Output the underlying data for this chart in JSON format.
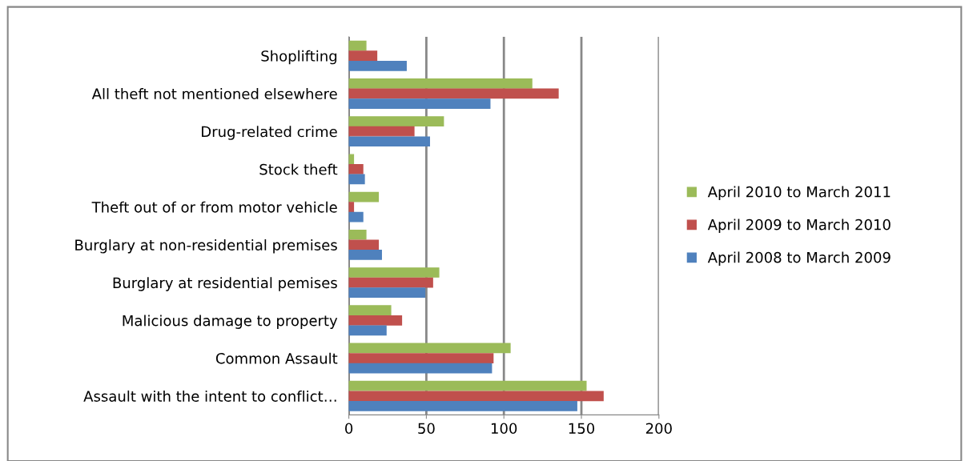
{
  "chart_data": {
    "type": "bar",
    "orientation": "horizontal",
    "categories": [
      "Shoplifting",
      "All theft not mentioned elsewhere",
      "Drug-related crime",
      "Stock theft",
      "Theft out of or from motor vehicle",
      "Burglary at non-residential premises",
      "Burglary at residential pemises",
      "Malicious damage to property",
      "Common Assault",
      "Assault with the intent to conflict…"
    ],
    "series": [
      {
        "name": "April 2010 to March 2011",
        "color": "#9bbb59",
        "values": [
          11,
          118,
          61,
          3,
          19,
          11,
          58,
          27,
          104,
          153
        ]
      },
      {
        "name": "April 2009 to March 2010",
        "color": "#c0504d",
        "values": [
          18,
          135,
          42,
          9,
          3,
          19,
          54,
          34,
          93,
          164
        ]
      },
      {
        "name": "April 2008 to March 2009",
        "color": "#4f81bd",
        "values": [
          37,
          91,
          52,
          10,
          9,
          21,
          49,
          24,
          92,
          147
        ]
      }
    ],
    "xlim": [
      0,
      200
    ],
    "xticks": [
      0,
      50,
      100,
      150,
      200
    ],
    "grid": "x",
    "legend": "right"
  }
}
